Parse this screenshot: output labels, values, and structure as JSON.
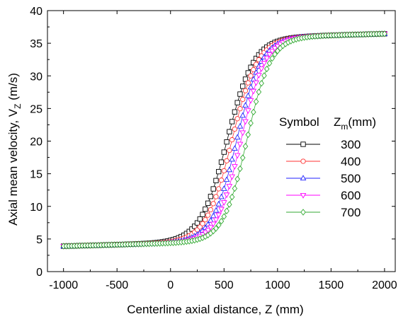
{
  "chart_data": {
    "type": "scatter",
    "xlabel": "Centerline axial distance, Z (mm)",
    "ylabel_main": "Axial mean velocity, V",
    "ylabel_sub": "Z",
    "ylabel_unit": " (m/s)",
    "xlim": [
      -1150,
      2100
    ],
    "ylim": [
      0,
      40
    ],
    "xticks": [
      -1000,
      -500,
      0,
      500,
      1000,
      1500,
      2000
    ],
    "yticks": [
      0,
      5,
      10,
      15,
      20,
      25,
      30,
      35,
      40
    ],
    "grid": false,
    "legend_placement": "right-middle",
    "legend_header": "Symbol",
    "legend_header_var": "Z",
    "legend_header_sub": "m",
    "legend_header_unit": "(mm)",
    "x_start": -1000,
    "x_end": 2000,
    "x_step": 25,
    "series": [
      {
        "name": "300",
        "marker": "square",
        "color": "#000000",
        "zm": 300,
        "center": 530,
        "width": 125
      },
      {
        "name": "400",
        "marker": "circle",
        "color": "#ff3333",
        "zm": 400,
        "center": 575,
        "width": 120
      },
      {
        "name": "500",
        "marker": "triangle-up",
        "color": "#2222ff",
        "zm": 500,
        "center": 620,
        "width": 115
      },
      {
        "name": "600",
        "marker": "triangle-down",
        "color": "#ff00ff",
        "zm": 600,
        "center": 660,
        "width": 112
      },
      {
        "name": "700",
        "marker": "diamond",
        "color": "#33aa33",
        "zm": 700,
        "center": 715,
        "width": 110
      }
    ]
  }
}
